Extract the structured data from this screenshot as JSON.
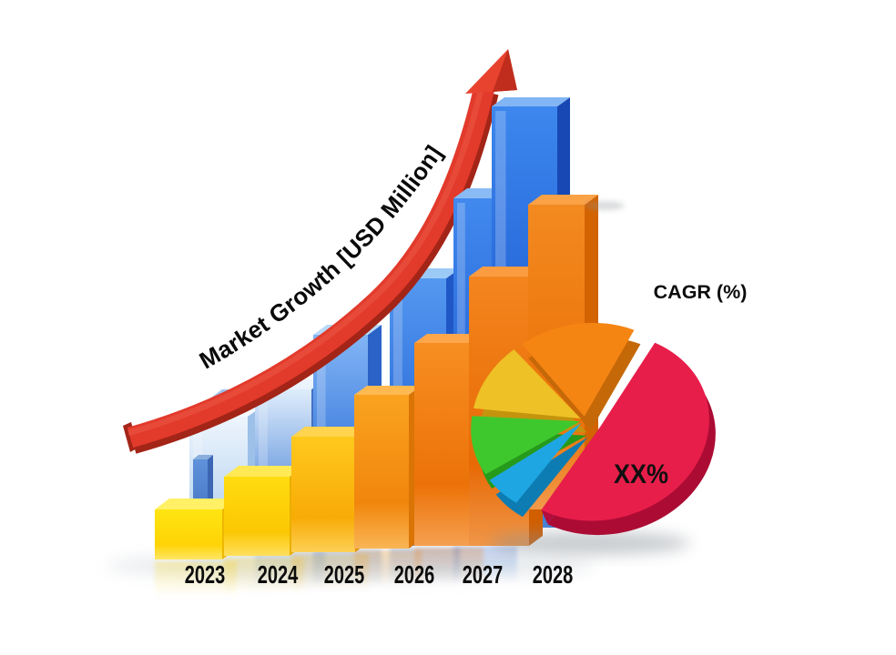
{
  "page": {
    "background": "#ffffff",
    "description": "3D market growth concept chart with rising columns, red growth arrow and CAGR pie"
  },
  "arrow": {
    "label": "Market Growth [USD Million]",
    "color": "#e23a2b",
    "color_dark": "#a32518",
    "gloss_color": "#f0604d",
    "head_color": "#e8432f",
    "head_dark": "#bb2b1b"
  },
  "labels": {
    "cagr": "CAGR (%)",
    "pie_share": "XX%"
  },
  "chart_data": {
    "type": "composite",
    "charts": [
      {
        "type": "bar",
        "title": "Market Growth [USD Million]",
        "categories": [
          "2023",
          "2024",
          "2025",
          "2026",
          "2027",
          "2028"
        ],
        "series": [
          {
            "name": "back-blue-columns",
            "values": [
              148,
              176,
              234,
              294,
              380,
              463
            ]
          },
          {
            "name": "front-gold-columns",
            "values": [
              55,
              87,
              127,
              169,
              223,
              296
            ]
          }
        ],
        "extra_front_column": {
          "value": 335,
          "note": "seventh unlabeled orange column at far right"
        },
        "value_units": "illustrative pixel heights (no numeric axis shown)",
        "trend": "increasing",
        "grid": false,
        "legend": false
      },
      {
        "type": "pie",
        "title": "CAGR (%)",
        "legend": false,
        "slices": [
          {
            "name": "highlight-share",
            "value_pct": 53,
            "color": "#e81e4a",
            "color_dark": "#ac0c34",
            "edge_light": "#f1507a",
            "edge_dark": "#b30d3e",
            "label": "XX%"
          },
          {
            "name": "blue-share",
            "value_pct": 6,
            "color": "#1ea6e2",
            "color_dark": "#0d7cb2",
            "label": ""
          },
          {
            "name": "green-share",
            "value_pct": 11,
            "color": "#3fc82e",
            "color_dark": "#269a1b",
            "label": ""
          },
          {
            "name": "yellow-share",
            "value_pct": 12,
            "color": "#eec126",
            "color_dark": "#c4940e",
            "label": ""
          },
          {
            "name": "orange-share",
            "value_pct": 18,
            "color": "#f58513",
            "color_dark": "#c56808",
            "label": ""
          }
        ]
      }
    ]
  },
  "palette": {
    "back_bars": [
      {
        "f1": "#eef5fd",
        "f2": "#bcd7f1",
        "f3": "#ddebf8",
        "side": "#9cc0e8",
        "top": "#f5fafe"
      },
      {
        "f1": "#dfedfb",
        "f2": "#5a8edc",
        "f3": "#90b6e8",
        "side": "#4372c4",
        "top": "#ebf3fc"
      },
      {
        "f1": "#82b5f5",
        "f2": "#2f70d8",
        "f3": "#6da0e2",
        "side": "#2a62c8",
        "top": "#bad9f8"
      },
      {
        "f1": "#5598f0",
        "f2": "#2465d6",
        "f3": "#5590e0",
        "side": "#1f58c6",
        "top": "#9ccaf7"
      },
      {
        "f1": "#4289ee",
        "f2": "#1e5ed2",
        "f3": "#4f8ade",
        "side": "#1a50bc",
        "top": "#8abbf5"
      },
      {
        "f1": "#3d87ee",
        "f2": "#1b57ce",
        "f3": "#4583d8",
        "side": "#1748b4",
        "top": "#81b5f4"
      }
    ],
    "front_bars": [
      {
        "f1": "#ffe512",
        "f2": "#ffd305",
        "f3": "#ffe664",
        "side": "#eeb702",
        "top": "#fff065"
      },
      {
        "f1": "#ffdc10",
        "f2": "#fcc703",
        "f3": "#ffdf5e",
        "side": "#eaaf01",
        "top": "#ffe955"
      },
      {
        "f1": "#ffc91d",
        "f2": "#f8ab06",
        "f3": "#fdd055",
        "side": "#e39202",
        "top": "#ffd44f"
      },
      {
        "f1": "#faa321",
        "f2": "#f1860c",
        "f3": "#f9b556",
        "side": "#da7404",
        "top": "#ffb951"
      },
      {
        "f1": "#f78e22",
        "f2": "#ec7208",
        "f3": "#f5a050",
        "side": "#d56502",
        "top": "#fea64a"
      },
      {
        "f1": "#f4851e",
        "f2": "#e76a05",
        "f3": "#f09648",
        "side": "#d15e01",
        "top": "#fb9c41"
      },
      {
        "f1": "#f38a20",
        "f2": "#e97007",
        "f3": "#f19a4a",
        "side": "#d36301",
        "top": "#fba246"
      }
    ],
    "step_bars": {
      "b0": {
        "f1": "#6ba0e4",
        "f2": "#3f77cc",
        "f3": "#5e92da",
        "side": "#3566bc",
        "top": "#9dc2ee"
      },
      "b2": {
        "f1": "#5f92da",
        "f2": "#4474c4",
        "f3": "#5c8cd2",
        "side": "#3c66b4",
        "top": "#88aede"
      }
    }
  }
}
